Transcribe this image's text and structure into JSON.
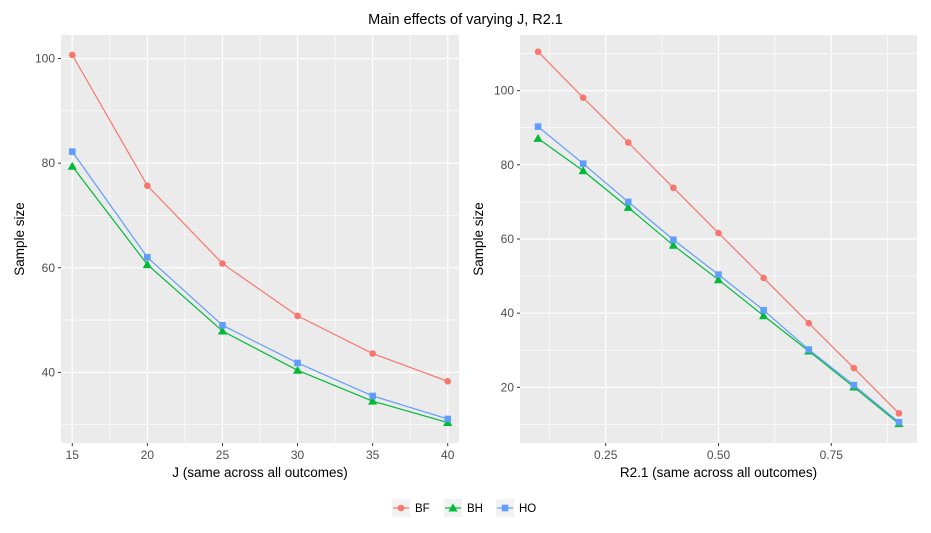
{
  "figure_title": "Main effects of varying J, R2.1",
  "legend": {
    "items": [
      {
        "name": "BF",
        "color": "#F8766D",
        "shape": "circle"
      },
      {
        "name": "BH",
        "color": "#00BA38",
        "shape": "triangle"
      },
      {
        "name": "HO",
        "color": "#619CFF",
        "shape": "square"
      }
    ]
  },
  "chart_data": [
    {
      "type": "line",
      "title": "",
      "xlabel": "J (same across all outcomes)",
      "ylabel": "Sample size",
      "x": [
        15,
        20,
        25,
        30,
        35,
        40
      ],
      "xlim": [
        14.25,
        40.75
      ],
      "ylim": [
        26.5,
        104.5
      ],
      "xticks": [
        15,
        20,
        25,
        30,
        35,
        40
      ],
      "xtick_labels": [
        "15",
        "20",
        "25",
        "30",
        "35",
        "40"
      ],
      "xminor": [
        17.5,
        22.5,
        27.5,
        32.5,
        37.5
      ],
      "yticks": [
        40,
        60,
        80,
        100
      ],
      "ytick_labels": [
        "40",
        "60",
        "80",
        "100"
      ],
      "yminor": [
        30,
        50,
        70,
        90
      ],
      "grid": true,
      "series": [
        {
          "name": "BF",
          "values": [
            100.7,
            75.7,
            60.8,
            50.8,
            43.6,
            38.3
          ]
        },
        {
          "name": "BH",
          "values": [
            79.4,
            60.6,
            47.9,
            40.4,
            34.5,
            30.4
          ]
        },
        {
          "name": "HO",
          "values": [
            82.2,
            62.0,
            49.0,
            41.8,
            35.5,
            31.1
          ]
        }
      ]
    },
    {
      "type": "line",
      "title": "",
      "xlabel": "R2.1 (same across all outcomes)",
      "ylabel": "Sample size",
      "x": [
        0.1,
        0.2,
        0.3,
        0.4,
        0.5,
        0.6,
        0.7,
        0.8,
        0.9
      ],
      "xlim": [
        0.06,
        0.94
      ],
      "ylim": [
        5.0,
        115.0
      ],
      "xticks": [
        0.25,
        0.5,
        0.75
      ],
      "xtick_labels": [
        "0.25",
        "0.50",
        "0.75"
      ],
      "xminor": [
        0.125,
        0.375,
        0.625,
        0.875
      ],
      "yticks": [
        20,
        40,
        60,
        80,
        100
      ],
      "ytick_labels": [
        "20",
        "40",
        "60",
        "80",
        "100"
      ],
      "yminor": [
        10,
        30,
        50,
        70,
        90,
        110
      ],
      "grid": true,
      "series": [
        {
          "name": "BF",
          "values": [
            110.5,
            98.1,
            86.0,
            73.8,
            61.6,
            49.5,
            37.3,
            25.2,
            13.0
          ]
        },
        {
          "name": "BH",
          "values": [
            87.1,
            78.4,
            68.5,
            58.3,
            49.0,
            39.3,
            29.8,
            20.1,
            10.2
          ]
        },
        {
          "name": "HO",
          "values": [
            90.3,
            80.3,
            70.0,
            59.8,
            50.4,
            40.8,
            30.2,
            20.6,
            10.6
          ]
        }
      ]
    }
  ]
}
